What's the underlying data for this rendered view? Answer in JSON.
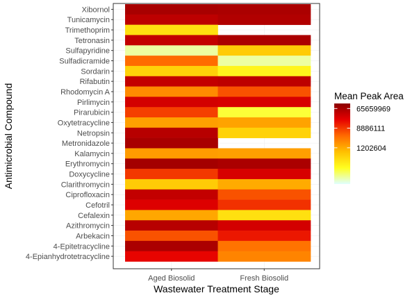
{
  "chart_data": {
    "type": "heatmap",
    "xlabel": "Wastewater Treatment Stage",
    "ylabel": "Antimicrobial Compound",
    "x_categories": [
      "Aged Biosolid",
      "Fresh Biosolid"
    ],
    "y_categories": [
      "Xibornol",
      "Tunicamycin",
      "Trimethoprim",
      "Tetronasin",
      "Sulfapyridine",
      "Sulfadicramide",
      "Sordarin",
      "Rifabutin",
      "Rhodomycin A",
      "Pirlimycin",
      "Pirarubicin",
      "Oxytetracycline",
      "Netropsin",
      "Metronidazole",
      "Kalamycin",
      "Erythromycin",
      "Doxycycline",
      "Clarithromycin",
      "Ciprofloxacin",
      "Cefotril",
      "Cefalexin",
      "Azithromycin",
      "Arbekacin",
      "4-Epitetracycline",
      "4-Epianhydrotetracycline"
    ],
    "values": [
      [
        65000000,
        62000000
      ],
      [
        45000000,
        55000000
      ],
      [
        350000,
        null
      ],
      [
        40000000,
        62000000
      ],
      [
        60000,
        600000
      ],
      [
        4000000,
        60000
      ],
      [
        500000,
        200000
      ],
      [
        40000000,
        45000000
      ],
      [
        2200000,
        6000000
      ],
      [
        30000000,
        28000000
      ],
      [
        8000000,
        130000
      ],
      [
        1500000,
        1400000
      ],
      [
        50000000,
        500000
      ],
      [
        65000000,
        null
      ],
      [
        1600000,
        1500000
      ],
      [
        70000000,
        62000000
      ],
      [
        9000000,
        28000000
      ],
      [
        600000,
        1200000
      ],
      [
        40000000,
        6000000
      ],
      [
        25000000,
        10000000
      ],
      [
        1300000,
        350000
      ],
      [
        50000000,
        30000000
      ],
      [
        6000000,
        15000000
      ],
      [
        62000000,
        3500000
      ],
      [
        20000000,
        2500000
      ]
    ],
    "legend": {
      "title": "Mean Peak Area",
      "breaks": [
        65659969,
        8886111,
        1202604
      ],
      "break_labels": [
        "65659969",
        "8886111",
        "1202604"
      ],
      "scale": "log",
      "range": [
        30000,
        110000000
      ],
      "colors": [
        "#E0FFFF",
        "#FFFF20",
        "#FFC000",
        "#FF6A00",
        "#E60000",
        "#8B0000"
      ]
    },
    "grid": true,
    "legend_position": "right"
  }
}
